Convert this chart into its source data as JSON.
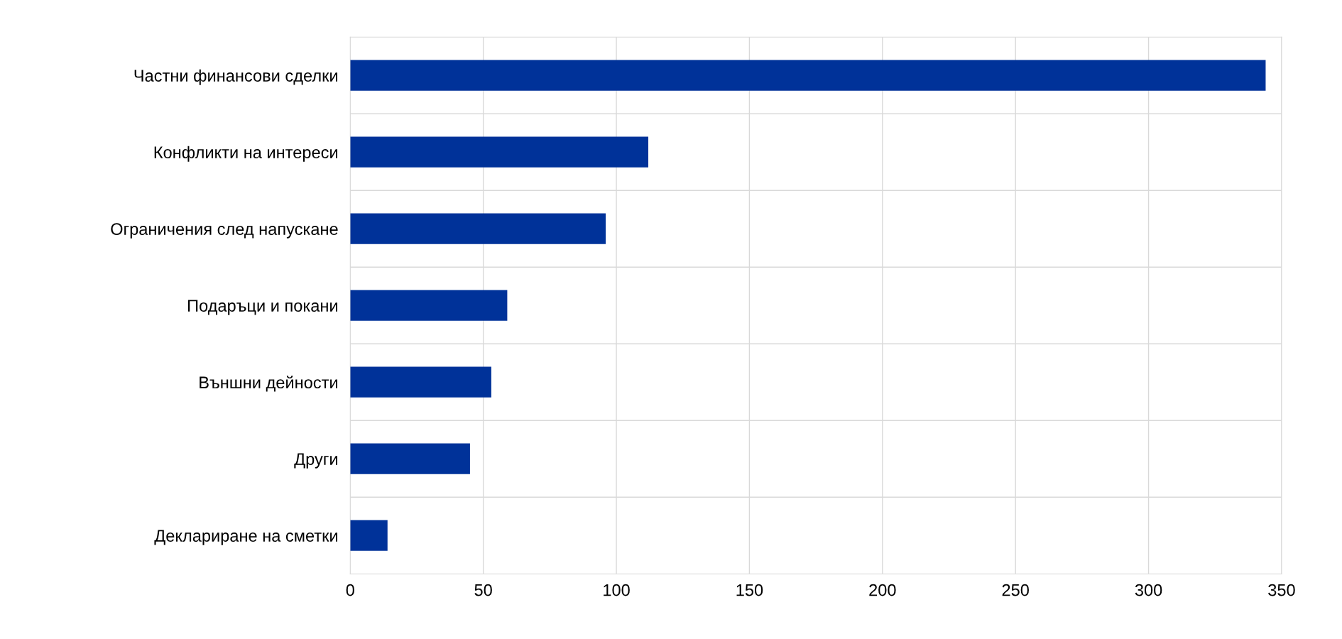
{
  "chart_data": {
    "type": "bar",
    "orientation": "horizontal",
    "categories": [
      "Частни финансови сделки",
      "Конфликти на интереси",
      "Ограничения след напускане",
      "Подаръци и покани",
      "Външни дейности",
      "Други",
      "Деклариране на сметки"
    ],
    "values": [
      344,
      112,
      96,
      59,
      53,
      45,
      14
    ],
    "color": "#003299",
    "xlim": [
      0,
      350
    ],
    "xticks": [
      0,
      50,
      100,
      150,
      200,
      250,
      300,
      350
    ],
    "grid": true,
    "legend": false
  }
}
